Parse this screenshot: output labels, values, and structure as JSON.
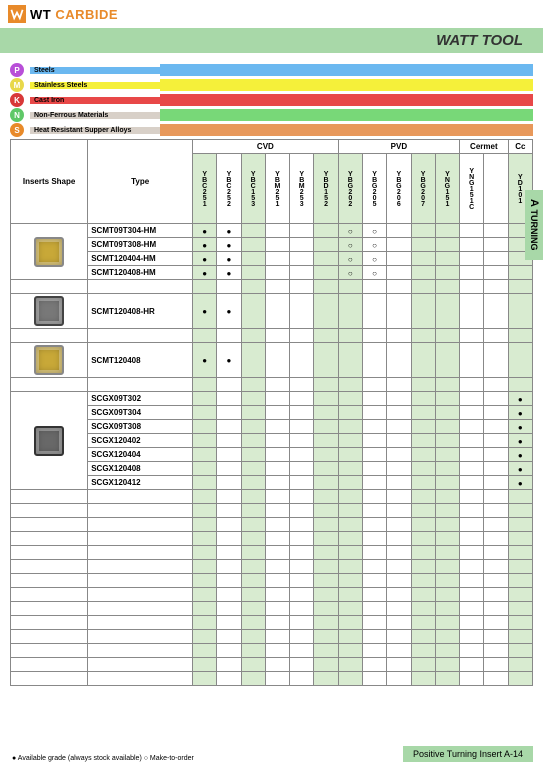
{
  "logo_text1": "WT",
  "logo_text2": "CARBIDE",
  "title": "WATT TOOL",
  "side_a": "A",
  "side_label": "TURNING",
  "materials": [
    {
      "k": "P",
      "label": "Steels",
      "badge": "#b84fd8",
      "label_bg": "#6bb8f0",
      "bar": "#6bb8f0"
    },
    {
      "k": "M",
      "label": "Stainless Steels",
      "badge": "#e8d84a",
      "label_bg": "#f5f03a",
      "bar": "#f5f03a"
    },
    {
      "k": "K",
      "label": "Cast Iron",
      "badge": "#d83838",
      "label_bg": "#e84848",
      "bar": "#e84848"
    },
    {
      "k": "N",
      "label": "Non-Ferrous Materials",
      "badge": "#5fc868",
      "label_bg": "#d8d0c8",
      "bar": "#78d878"
    },
    {
      "k": "S",
      "label": "Heat Resistant Supper Alloys",
      "badge": "#e88a2a",
      "label_bg": "#d8d0c8",
      "bar": "#e8985a"
    }
  ],
  "h_shape": "Inserts Shape",
  "h_type": "Type",
  "coatings": [
    {
      "label": "CVD",
      "span": 6
    },
    {
      "label": "PVD",
      "span": 5
    },
    {
      "label": "Cermet",
      "span": 2
    },
    {
      "label": "Cc",
      "span": 1
    }
  ],
  "codes": [
    "YBC251",
    "YBC252",
    "YBC153",
    "YBM251",
    "YBM253",
    "YBD152",
    "YBG202",
    "YBG205",
    "YBG206",
    "YBG207",
    "YNG151",
    "YNG151C",
    "",
    "YD101"
  ],
  "alt": [
    "a",
    "b",
    "a",
    "b",
    "b",
    "a",
    "a",
    "b",
    "b",
    "a",
    "a",
    "b",
    "b",
    "a"
  ],
  "groups": [
    {
      "shape": {
        "bg": "#c8a838",
        "border": "#888"
      },
      "rows": [
        {
          "t": "SCMT09T304-HM",
          "d": [
            "f",
            "f",
            "",
            "",
            "",
            "",
            "o",
            "o",
            "",
            "",
            "",
            "",
            "",
            ""
          ]
        },
        {
          "t": "SCMT09T308-HM",
          "d": [
            "f",
            "f",
            "",
            "",
            "",
            "",
            "o",
            "o",
            "",
            "",
            "",
            "",
            "",
            ""
          ]
        },
        {
          "t": "SCMT120404-HM",
          "d": [
            "f",
            "f",
            "",
            "",
            "",
            "",
            "o",
            "o",
            "",
            "",
            "",
            "",
            "",
            ""
          ]
        },
        {
          "t": "SCMT120408-HM",
          "d": [
            "f",
            "f",
            "",
            "",
            "",
            "",
            "o",
            "o",
            "",
            "",
            "",
            "",
            "",
            ""
          ]
        }
      ]
    },
    {
      "shape": {
        "bg": "#787878",
        "border": "#444"
      },
      "rows": [
        {
          "t": "SCMT120408-HR",
          "d": [
            "f",
            "f",
            "",
            "",
            "",
            "",
            "",
            "",
            "",
            "",
            "",
            "",
            "",
            ""
          ]
        }
      ]
    },
    {
      "shape": {
        "bg": "#c8a838",
        "border": "#888"
      },
      "rows": [
        {
          "t": "SCMT120408",
          "d": [
            "f",
            "f",
            "",
            "",
            "",
            "",
            "",
            "",
            "",
            "",
            "",
            "",
            "",
            ""
          ]
        }
      ]
    },
    {
      "shape": {
        "bg": "#686868",
        "border": "#333"
      },
      "rows": [
        {
          "t": "SCGX09T302",
          "d": [
            "",
            "",
            "",
            "",
            "",
            "",
            "",
            "",
            "",
            "",
            "",
            "",
            "",
            "f"
          ]
        },
        {
          "t": "SCGX09T304",
          "d": [
            "",
            "",
            "",
            "",
            "",
            "",
            "",
            "",
            "",
            "",
            "",
            "",
            "",
            "f"
          ]
        },
        {
          "t": "SCGX09T308",
          "d": [
            "",
            "",
            "",
            "",
            "",
            "",
            "",
            "",
            "",
            "",
            "",
            "",
            "",
            "f"
          ]
        },
        {
          "t": "SCGX120402",
          "d": [
            "",
            "",
            "",
            "",
            "",
            "",
            "",
            "",
            "",
            "",
            "",
            "",
            "",
            "f"
          ]
        },
        {
          "t": "SCGX120404",
          "d": [
            "",
            "",
            "",
            "",
            "",
            "",
            "",
            "",
            "",
            "",
            "",
            "",
            "",
            "f"
          ]
        },
        {
          "t": "SCGX120408",
          "d": [
            "",
            "",
            "",
            "",
            "",
            "",
            "",
            "",
            "",
            "",
            "",
            "",
            "",
            "f"
          ]
        },
        {
          "t": "SCGX120412",
          "d": [
            "",
            "",
            "",
            "",
            "",
            "",
            "",
            "",
            "",
            "",
            "",
            "",
            "",
            "f"
          ]
        }
      ]
    }
  ],
  "empty_rows": 13,
  "legend_note": "● Available grade (always stock available)  ○ Make-to-order",
  "footer_label": "Positive Turning Insert  A-14"
}
